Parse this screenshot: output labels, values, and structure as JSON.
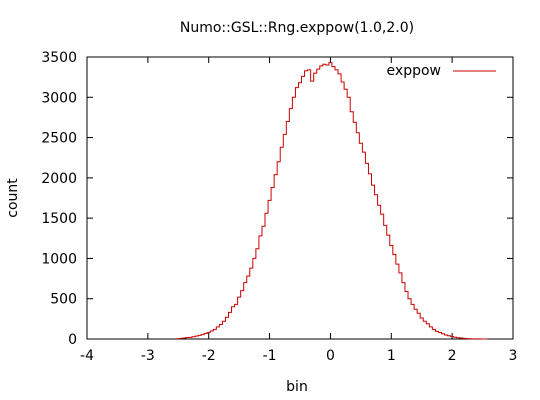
{
  "chart_data": {
    "type": "line",
    "style": "histogram-steps",
    "title": "Numo::GSL::Rng.exppow(1.0,2.0)",
    "xlabel": "bin",
    "ylabel": "count",
    "xlim": [
      -4,
      3
    ],
    "ylim": [
      0,
      3500
    ],
    "x_ticks": [
      -4,
      -3,
      -2,
      -1,
      0,
      1,
      2,
      3
    ],
    "y_ticks": [
      0,
      500,
      1000,
      1500,
      2000,
      2500,
      3000,
      3500
    ],
    "grid": false,
    "legend_position": "top-right",
    "series": [
      {
        "name": "exppow",
        "color": "#cc0000",
        "bin_width": 0.05,
        "x": [
          -2.5,
          -2.45,
          -2.4,
          -2.35,
          -2.3,
          -2.25,
          -2.2,
          -2.15,
          -2.1,
          -2.05,
          -2.0,
          -1.95,
          -1.9,
          -1.85,
          -1.8,
          -1.75,
          -1.7,
          -1.65,
          -1.6,
          -1.55,
          -1.5,
          -1.45,
          -1.4,
          -1.35,
          -1.3,
          -1.25,
          -1.2,
          -1.15,
          -1.1,
          -1.05,
          -1.0,
          -0.95,
          -0.9,
          -0.85,
          -0.8,
          -0.75,
          -0.7,
          -0.65,
          -0.6,
          -0.55,
          -0.5,
          -0.45,
          -0.4,
          -0.35,
          -0.3,
          -0.25,
          -0.2,
          -0.15,
          -0.1,
          -0.05,
          0.0,
          0.05,
          0.1,
          0.15,
          0.2,
          0.25,
          0.3,
          0.35,
          0.4,
          0.45,
          0.5,
          0.55,
          0.6,
          0.65,
          0.7,
          0.75,
          0.8,
          0.85,
          0.9,
          0.95,
          1.0,
          1.05,
          1.1,
          1.15,
          1.2,
          1.25,
          1.3,
          1.35,
          1.4,
          1.45,
          1.5,
          1.55,
          1.6,
          1.65,
          1.7,
          1.75,
          1.8,
          1.85,
          1.9,
          1.95,
          2.0,
          2.05,
          2.1,
          2.15,
          2.2,
          2.25,
          2.3,
          2.35,
          2.4,
          2.45,
          2.5,
          2.55
        ],
        "values": [
          5,
          8,
          12,
          18,
          20,
          28,
          35,
          45,
          55,
          68,
          80,
          100,
          120,
          150,
          180,
          220,
          270,
          330,
          400,
          430,
          520,
          600,
          700,
          780,
          880,
          1000,
          1120,
          1280,
          1400,
          1560,
          1720,
          1880,
          2040,
          2200,
          2380,
          2540,
          2700,
          2860,
          3000,
          3120,
          3180,
          3260,
          3330,
          3340,
          3200,
          3300,
          3350,
          3390,
          3410,
          3400,
          3430,
          3380,
          3340,
          3290,
          3190,
          3100,
          3000,
          2820,
          2690,
          2560,
          2430,
          2320,
          2180,
          2050,
          1910,
          1790,
          1660,
          1550,
          1410,
          1290,
          1160,
          1050,
          930,
          820,
          700,
          590,
          500,
          430,
          370,
          320,
          260,
          220,
          190,
          150,
          120,
          95,
          80,
          65,
          50,
          40,
          30,
          22,
          16,
          12,
          8,
          5,
          3,
          2,
          1,
          1,
          0,
          0
        ]
      }
    ]
  }
}
